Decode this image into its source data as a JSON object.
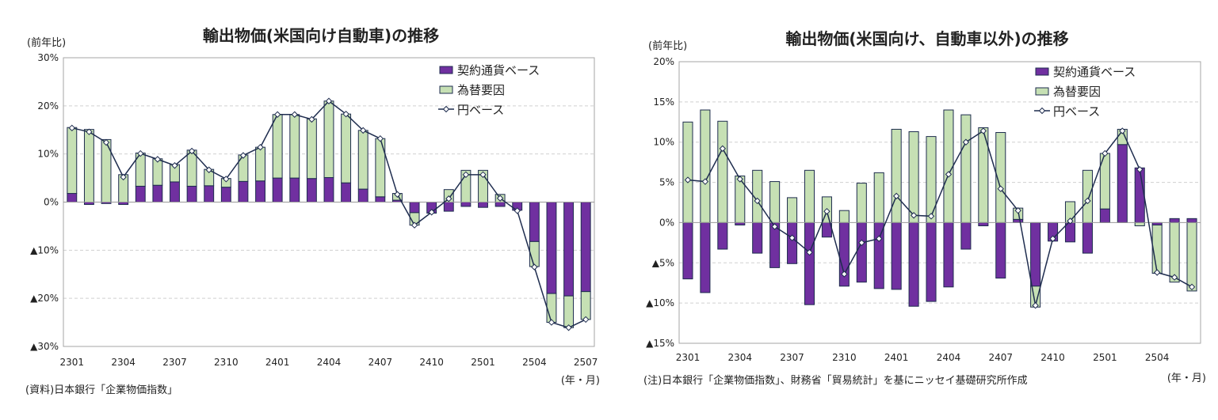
{
  "colors": {
    "contract": "#7030a0",
    "fx": "#c6e0b4",
    "outline": "#1f2d4f",
    "line": "#1f2d4f",
    "grid": "#d0d0d0",
    "frame": "#a6a6a6"
  },
  "chart_data": [
    {
      "type": "bar",
      "stacked": true,
      "title": "輸出物価(米国向け自動車)の推移",
      "ylabel": "(前年比)",
      "xlabel": "(年・月)",
      "note": "(資料)日本銀行「企業物価指数」",
      "ylim": [
        -30,
        30
      ],
      "yticks": [
        30,
        20,
        10,
        0,
        -10,
        -20,
        -30
      ],
      "ytick_labels": [
        "30%",
        "20%",
        "10%",
        "0%",
        "▲10%",
        "▲20%",
        "▲30%"
      ],
      "grid": true,
      "legend": "top-right",
      "categories": [
        "2301",
        "2302",
        "2303",
        "2304",
        "2305",
        "2306",
        "2307",
        "2308",
        "2309",
        "2310",
        "2311",
        "2312",
        "2401",
        "2402",
        "2403",
        "2404",
        "2405",
        "2406",
        "2407",
        "2408",
        "2409",
        "2410",
        "2411",
        "2412",
        "2501",
        "2502",
        "2503",
        "2504",
        "2505",
        "2506",
        "2507"
      ],
      "xtick_labels": [
        "2301",
        "2304",
        "2307",
        "2310",
        "2401",
        "2404",
        "2407",
        "2410",
        "2501",
        "2504",
        "2507"
      ],
      "series": [
        {
          "name": "契約通貨ベース",
          "kind": "bar",
          "values": [
            1.8,
            -0.5,
            -0.3,
            -0.5,
            3.3,
            3.5,
            4.2,
            3.3,
            3.4,
            3.1,
            4.3,
            4.4,
            5.0,
            5.0,
            4.9,
            5.1,
            4.0,
            2.7,
            1.1,
            0.4,
            -2.2,
            -2.3,
            -1.9,
            -0.9,
            -1.1,
            -0.9,
            -1.7,
            -8.2,
            -19.0,
            -19.5,
            -18.6
          ]
        },
        {
          "name": "為替要因",
          "kind": "bar",
          "values": [
            13.7,
            15.1,
            13.0,
            5.7,
            6.9,
            5.5,
            3.6,
            7.5,
            3.4,
            1.8,
            5.5,
            7.0,
            13.2,
            13.2,
            12.4,
            15.9,
            14.3,
            12.2,
            12.1,
            1.4,
            -2.6,
            0.0,
            2.6,
            6.6,
            6.6,
            1.6,
            0.0,
            -5.2,
            -6.0,
            -6.6,
            -5.8
          ]
        },
        {
          "name": "円ベース",
          "kind": "line",
          "values": [
            15.4,
            14.6,
            12.4,
            5.2,
            10.1,
            8.9,
            7.6,
            10.6,
            6.7,
            4.8,
            9.7,
            11.4,
            18.2,
            18.2,
            17.2,
            21.0,
            18.3,
            14.9,
            13.2,
            1.6,
            -4.8,
            -2.1,
            0.7,
            5.7,
            5.7,
            0.8,
            -1.8,
            -13.5,
            -25.0,
            -26.1,
            -24.4
          ]
        }
      ]
    },
    {
      "type": "bar",
      "stacked": true,
      "title": "輸出物価(米国向け、自動車以外)の推移",
      "ylabel": "(前年比)",
      "xlabel": "(年・月)",
      "note": "(注)日本銀行「企業物価指数」、財務省「貿易統計」を基にニッセイ基礎研究所作成",
      "ylim": [
        -15,
        20
      ],
      "yticks": [
        20,
        15,
        10,
        5,
        0,
        -5,
        -10,
        -15
      ],
      "ytick_labels": [
        "20%",
        "15%",
        "10%",
        "5%",
        "0%",
        "▲5%",
        "▲10%",
        "▲15%"
      ],
      "grid": true,
      "legend": "top-right",
      "categories": [
        "2301",
        "2302",
        "2303",
        "2304",
        "2305",
        "2306",
        "2307",
        "2308",
        "2309",
        "2310",
        "2311",
        "2312",
        "2401",
        "2402",
        "2403",
        "2404",
        "2405",
        "2406",
        "2407",
        "2408",
        "2409",
        "2410",
        "2411",
        "2412",
        "2501",
        "2502",
        "2503",
        "2504",
        "2505",
        "2506"
      ],
      "xtick_labels": [
        "2301",
        "2304",
        "2307",
        "2310",
        "2401",
        "2404",
        "2407",
        "2410",
        "2501",
        "2504"
      ],
      "series": [
        {
          "name": "契約通貨ベース",
          "kind": "bar",
          "values": [
            -7.0,
            -8.7,
            -3.3,
            -0.3,
            -3.8,
            -5.6,
            -5.1,
            -10.2,
            -1.8,
            -7.9,
            -7.4,
            -8.2,
            -8.3,
            -10.4,
            -9.8,
            -8.0,
            -3.3,
            -0.4,
            -6.9,
            0.4,
            -7.9,
            -2.3,
            -2.4,
            -3.8,
            1.7,
            9.7,
            6.8,
            -0.3,
            0.5,
            0.5
          ]
        },
        {
          "name": "為替要因",
          "kind": "bar",
          "values": [
            12.5,
            14.0,
            12.6,
            5.8,
            6.5,
            5.1,
            3.1,
            6.5,
            3.2,
            1.5,
            4.9,
            6.2,
            11.6,
            11.3,
            10.7,
            14.0,
            13.4,
            11.8,
            11.2,
            1.4,
            -2.6,
            0.0,
            2.6,
            6.5,
            6.9,
            1.9,
            -0.4,
            -6.0,
            -7.4,
            -8.5
          ]
        },
        {
          "name": "円ベース",
          "kind": "line",
          "values": [
            5.3,
            5.1,
            9.2,
            5.4,
            2.7,
            -0.5,
            -1.9,
            -3.7,
            1.4,
            -6.4,
            -2.5,
            -2.0,
            3.3,
            0.9,
            0.8,
            6.0,
            10.0,
            11.4,
            4.2,
            1.5,
            -10.3,
            -2.0,
            0.2,
            2.7,
            8.6,
            11.4,
            6.6,
            -6.2,
            -6.8,
            -8.0
          ]
        }
      ]
    }
  ]
}
